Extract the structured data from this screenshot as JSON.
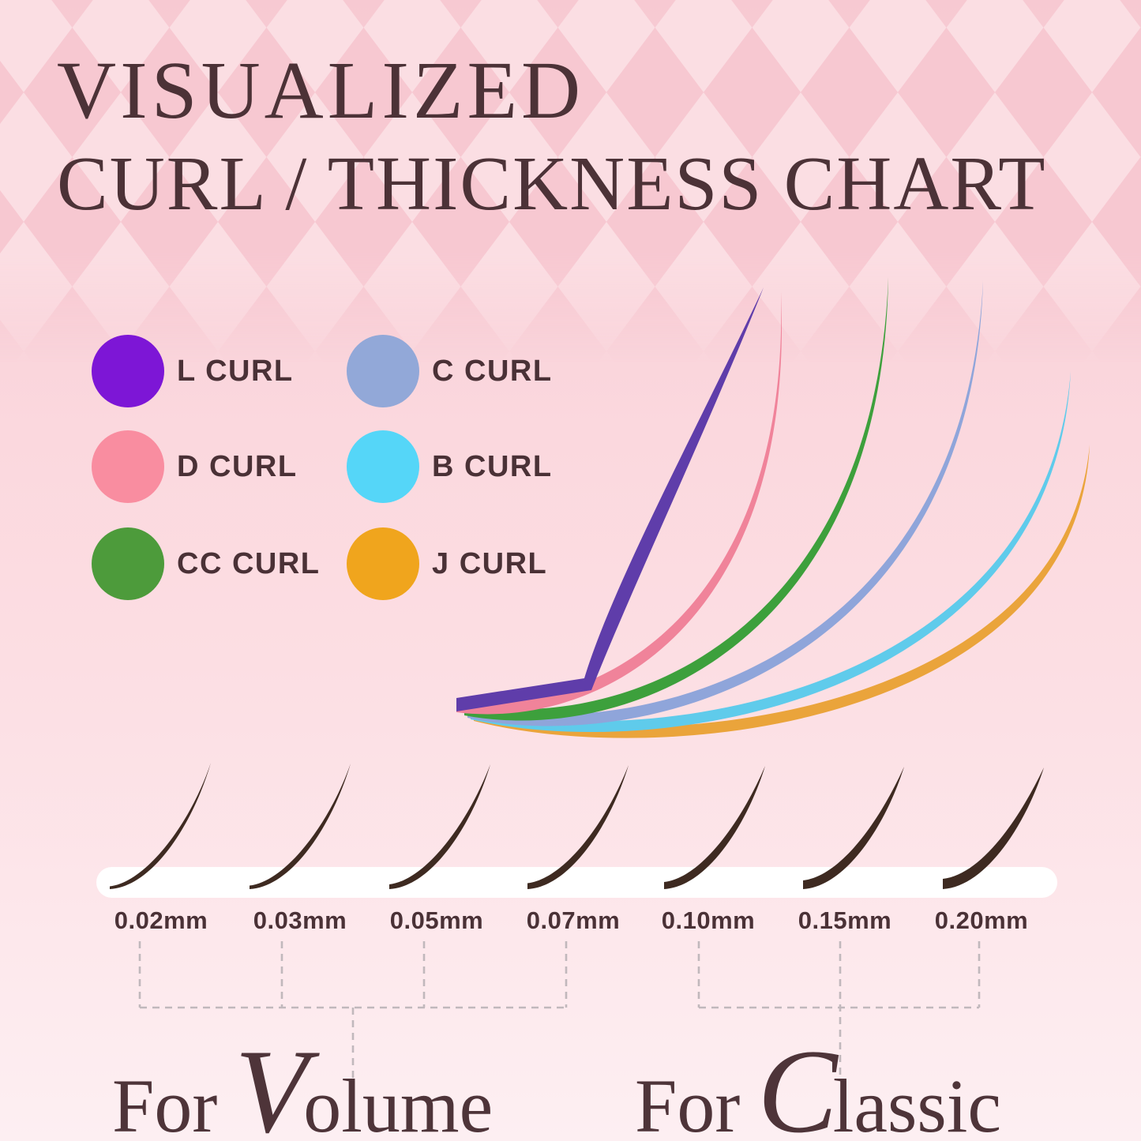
{
  "title": {
    "line1": "VISUALIZED",
    "line2": "CURL / THICKNESS CHART"
  },
  "legend": {
    "items": [
      {
        "id": "l-curl",
        "label": "L CURL",
        "color": "#7d16d6",
        "curve_color": "#5f3daa"
      },
      {
        "id": "c-curl",
        "label": "C CURL",
        "color": "#92a8d8",
        "curve_color": "#8fa5da"
      },
      {
        "id": "d-curl",
        "label": "D CURL",
        "color": "#f98da0",
        "curve_color": "#f0839a"
      },
      {
        "id": "b-curl",
        "label": "B CURL",
        "color": "#55d6f8",
        "curve_color": "#5fcbeb"
      },
      {
        "id": "cc-curl",
        "label": "CC CURL",
        "color": "#4d9b3b",
        "curve_color": "#3da03c"
      },
      {
        "id": "j-curl",
        "label": "J CURL",
        "color": "#f0a51d",
        "curve_color": "#eaa43b"
      }
    ]
  },
  "thickness": {
    "items": [
      {
        "label": "0.02mm"
      },
      {
        "label": "0.03mm"
      },
      {
        "label": "0.05mm"
      },
      {
        "label": "0.07mm"
      },
      {
        "label": "0.10mm"
      },
      {
        "label": "0.15mm"
      },
      {
        "label": "0.20mm"
      }
    ]
  },
  "groups": [
    {
      "prefix": "For",
      "initial": "V",
      "rest": "olume"
    },
    {
      "prefix": "For",
      "initial": "C",
      "rest": "lassic"
    }
  ],
  "colors": {
    "background_top": "#f7c9d2",
    "background_bottom": "#fdeff2",
    "diamond_light": "#fbdee3",
    "diamond_dark": "#f7c8d1",
    "title_text": "#4c3237",
    "label_text": "#4a3136",
    "lash": "#3e2a21",
    "dashed": "#c1b8bc",
    "band": "#ffffff",
    "script_text": "#4e3439"
  }
}
